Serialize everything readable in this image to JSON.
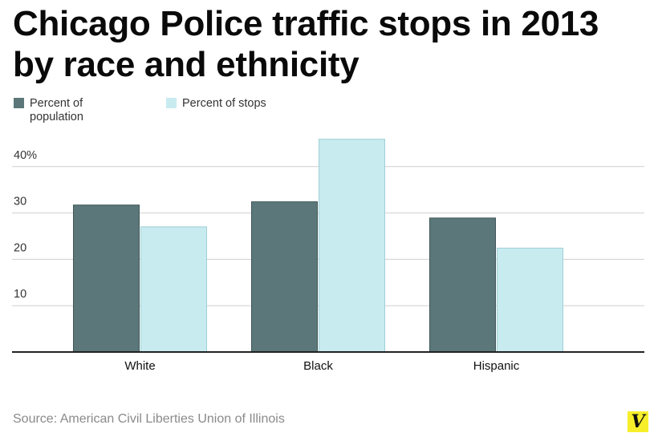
{
  "title": "Chicago Police traffic stops in 2013 by race and ethnicity",
  "source": "Source: American Civil Liberties Union of Illinois",
  "logo_text": "V",
  "colors": {
    "population": "#5b777a",
    "stops": "#c8ebf0",
    "grid": "#cfcfcf",
    "axis": "#222222"
  },
  "chart_data": {
    "type": "bar",
    "title": "Chicago Police traffic stops in 2013 by race and ethnicity",
    "xlabel": "",
    "ylabel": "",
    "categories": [
      "White",
      "Black",
      "Hispanic"
    ],
    "series": [
      {
        "name": "Percent of population",
        "values": [
          31.8,
          32.5,
          29.0
        ]
      },
      {
        "name": "Percent of stops",
        "values": [
          27.1,
          46.0,
          22.5
        ]
      }
    ],
    "ylim": [
      0,
      45
    ],
    "yticks": [
      10,
      20,
      30,
      40
    ],
    "ytick_labels": [
      "10",
      "20",
      "30",
      "40%"
    ],
    "legend": [
      "Percent of population",
      "Percent of stops"
    ],
    "legend_position": "top-left",
    "grid": true
  }
}
